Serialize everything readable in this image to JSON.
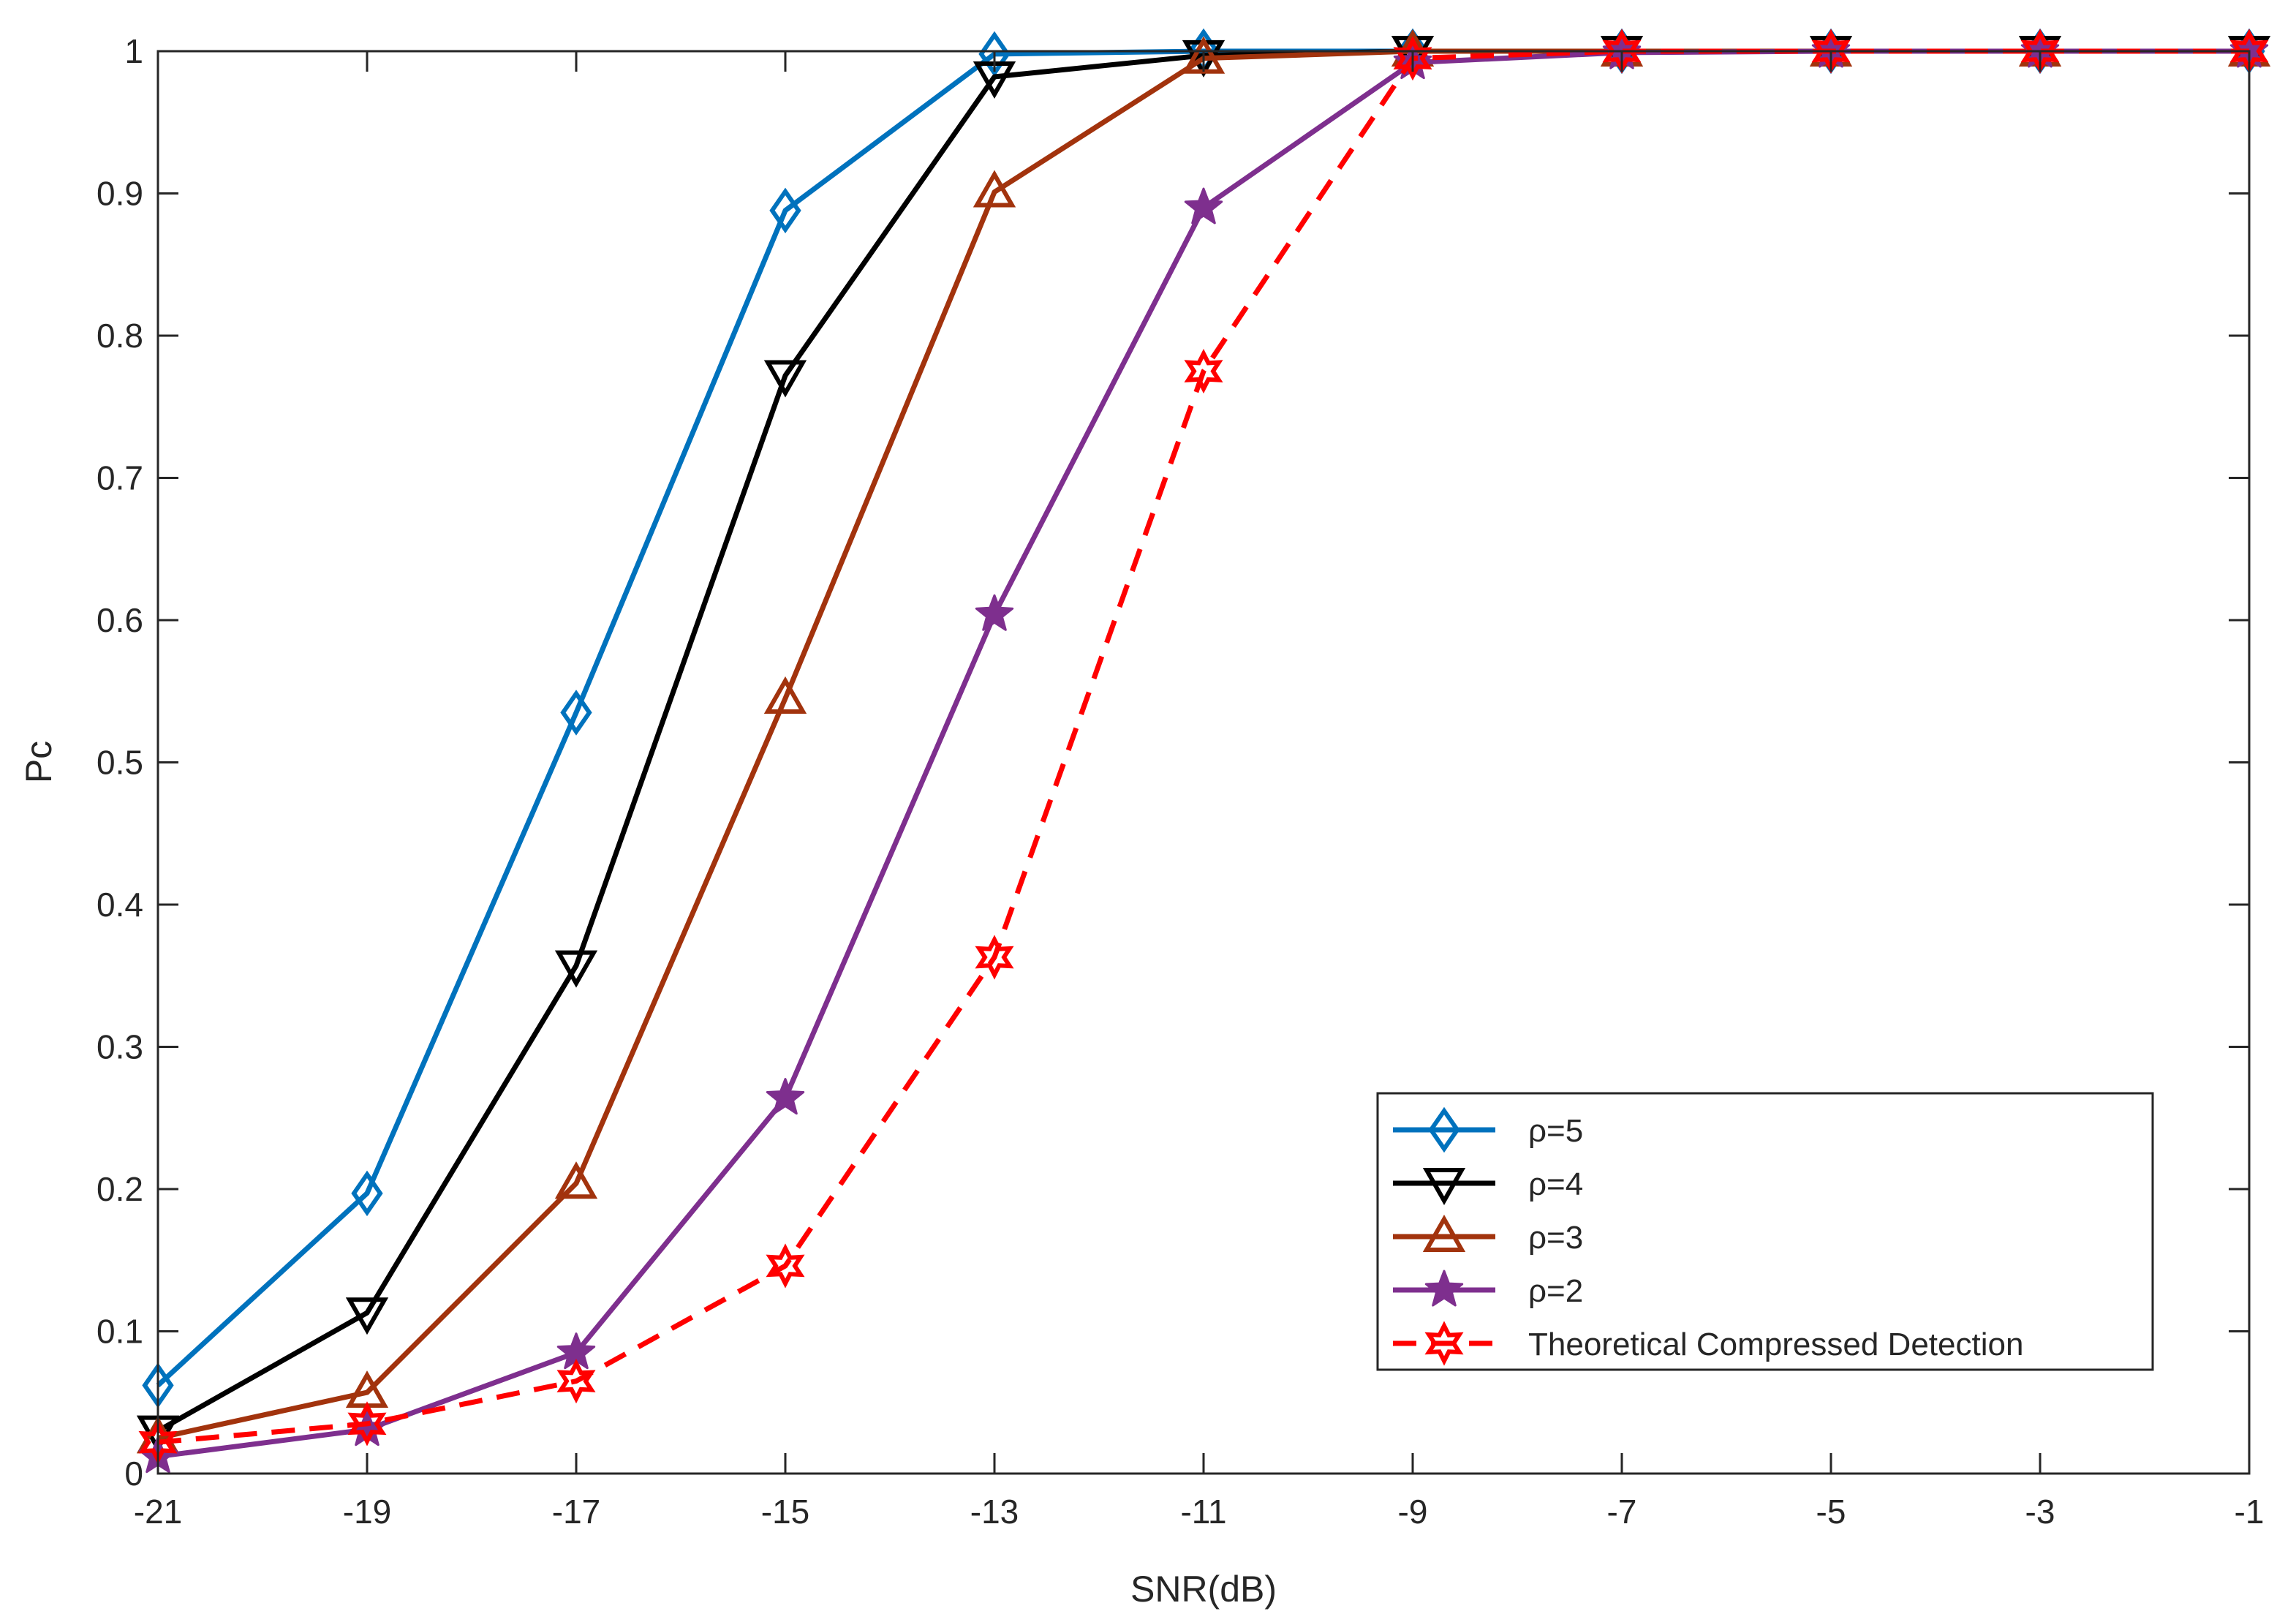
{
  "chart_data": {
    "type": "line",
    "title": "",
    "xlabel": "SNR(dB)",
    "ylabel": "Pc",
    "xlim": [
      -21,
      -1
    ],
    "ylim": [
      0,
      1
    ],
    "xticks": [
      -21,
      -19,
      -17,
      -15,
      -13,
      -11,
      -9,
      -7,
      -5,
      -3,
      -1
    ],
    "xtick_labels": [
      "-21",
      "-19",
      "-17",
      "-15",
      "-13",
      "-11",
      "-9",
      "-7",
      "-5",
      "-3",
      "-1"
    ],
    "yticks": [
      0,
      0.1,
      0.2,
      0.3,
      0.4,
      0.5,
      0.6,
      0.7,
      0.8,
      0.9,
      1
    ],
    "ytick_labels": [
      "0",
      "0.1",
      "0.2",
      "0.3",
      "0.4",
      "0.5",
      "0.6",
      "0.7",
      "0.8",
      "0.9",
      "1"
    ],
    "grid": false,
    "legend_position": "bottom-right",
    "x": [
      -21,
      -19,
      -17,
      -15,
      -13,
      -11,
      -9,
      -7,
      -5,
      -3,
      -1
    ],
    "series": [
      {
        "name": "ρ=5",
        "color": "#0072bd",
        "marker": "diamond",
        "dash": "solid",
        "values": [
          0.062,
          0.197,
          0.535,
          0.888,
          0.998,
          1.0,
          1.0,
          1.0,
          1.0,
          1.0,
          1.0
        ]
      },
      {
        "name": "ρ=4",
        "color": "#000000",
        "marker": "triangle-down",
        "dash": "solid",
        "values": [
          0.03,
          0.113,
          0.357,
          0.772,
          0.982,
          0.997,
          1.0,
          1.0,
          1.0,
          1.0,
          1.0
        ]
      },
      {
        "name": "ρ=3",
        "color": "#a2330d",
        "marker": "triangle-up",
        "dash": "solid",
        "values": [
          0.025,
          0.057,
          0.204,
          0.545,
          0.901,
          0.995,
          1.0,
          1.0,
          1.0,
          1.0,
          1.0
        ]
      },
      {
        "name": "ρ=2",
        "color": "#7e2f8e",
        "marker": "star",
        "dash": "solid",
        "values": [
          0.012,
          0.031,
          0.085,
          0.264,
          0.604,
          0.89,
          0.992,
          0.999,
          1.0,
          1.0,
          1.0
        ]
      },
      {
        "name": "Theoretical Compressed Detection",
        "color": "#ff0000",
        "marker": "hexagram",
        "dash": "dashed",
        "values": [
          0.022,
          0.035,
          0.065,
          0.146,
          0.363,
          0.775,
          0.995,
          1.0,
          1.0,
          1.0,
          1.0
        ]
      }
    ]
  }
}
